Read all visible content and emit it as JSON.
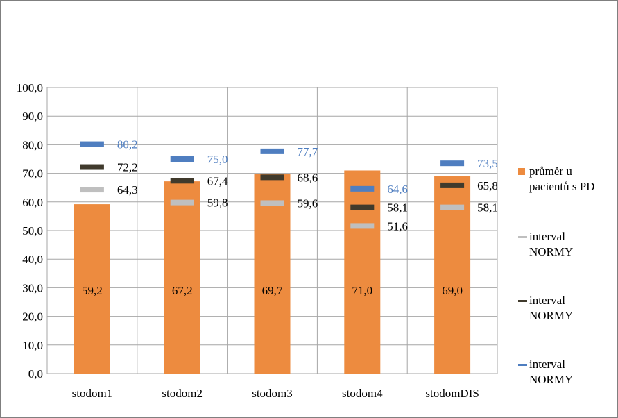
{
  "chart_data": {
    "type": "bar",
    "categories": [
      "stodom1",
      "stodom2",
      "stodom3",
      "stodom4",
      "stodomDIS"
    ],
    "series": [
      {
        "name": "průměr u pacientů s PD",
        "type": "bar",
        "color": "#ed8b3f",
        "values": [
          59.2,
          67.2,
          69.7,
          71.0,
          69.0
        ],
        "labels": [
          "59,2",
          "67,2",
          "69,7",
          "71,0",
          "69,0"
        ]
      },
      {
        "name": "interval NORMY",
        "type": "marker",
        "color": "#bfbfbf",
        "values": [
          64.3,
          59.8,
          59.6,
          51.6,
          58.1
        ],
        "labels": [
          "64,3",
          "59,8",
          "59,6",
          "51,6",
          "58,1"
        ]
      },
      {
        "name": "interval NORMY",
        "type": "marker",
        "color": "#403a2c",
        "values": [
          72.2,
          67.4,
          68.6,
          58.1,
          65.8
        ],
        "labels": [
          "72,2",
          "67,4",
          "68,6",
          "58,1",
          "65,8"
        ]
      },
      {
        "name": "interval NORMY",
        "type": "marker",
        "color": "#4f7ec0",
        "values": [
          80.2,
          75.0,
          77.7,
          64.6,
          73.5
        ],
        "labels": [
          "80,2",
          "75,0",
          "77,7",
          "64,6",
          "73,5"
        ]
      }
    ],
    "ylim": [
      0,
      100
    ],
    "yticks": [
      "0,0",
      "10,0",
      "20,0",
      "30,0",
      "40,0",
      "50,0",
      "60,0",
      "70,0",
      "80,0",
      "90,0",
      "100,0"
    ],
    "grid": true,
    "legend_position": "right",
    "colors": {
      "grid": "#a6a6a6",
      "axis": "#a6a6a6",
      "frame": "#7f7f7f"
    }
  },
  "legend": [
    {
      "line1": "průměr u",
      "line2": "pacientů s PD",
      "color": "#ed8b3f",
      "marker": "square"
    },
    {
      "line1": "interval",
      "line2": "NORMY",
      "color": "#bfbfbf",
      "marker": "dash"
    },
    {
      "line1": "interval",
      "line2": "NORMY",
      "color": "#403a2c",
      "marker": "dash"
    },
    {
      "line1": "interval",
      "line2": "NORMY",
      "color": "#4f7ec0",
      "marker": "dash"
    }
  ]
}
